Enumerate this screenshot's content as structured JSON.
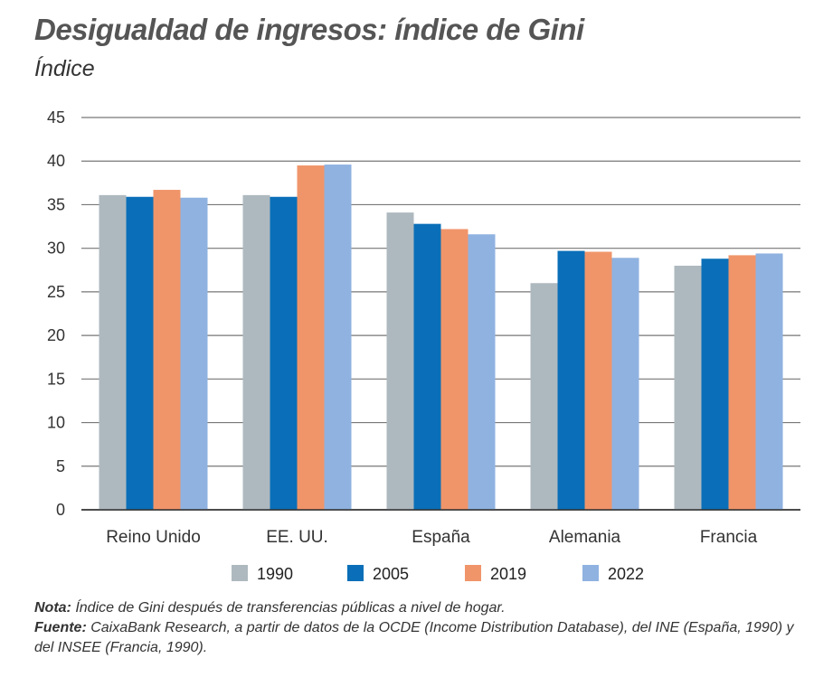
{
  "chart_data": {
    "type": "bar",
    "title": "Desigualdad de ingresos: índice de Gini",
    "subtitle": "Índice",
    "categories": [
      "Reino Unido",
      "EE. UU.",
      "España",
      "Alemania",
      "Francia"
    ],
    "series": [
      {
        "name": "1990",
        "color": "#aeb9bf",
        "values": [
          36.1,
          36.1,
          34.1,
          26.0,
          28.0
        ]
      },
      {
        "name": "2005",
        "color": "#0a6fb8",
        "values": [
          35.9,
          35.9,
          32.8,
          29.7,
          28.8
        ]
      },
      {
        "name": "2019",
        "color": "#f0956a",
        "values": [
          36.7,
          39.5,
          32.2,
          29.6,
          29.2
        ]
      },
      {
        "name": "2022",
        "color": "#8fb2e0",
        "values": [
          35.8,
          39.6,
          31.6,
          28.9,
          29.4
        ]
      }
    ],
    "ylim": [
      0,
      45
    ],
    "yticks": [
      0,
      5,
      10,
      15,
      20,
      25,
      30,
      35,
      40,
      45
    ],
    "grid": true,
    "legend": "bottom"
  },
  "notes": {
    "nota_label": "Nota:",
    "nota_text": " Índice de Gini después de transferencias públicas a nivel de hogar.",
    "fuente_label": "Fuente:",
    "fuente_text": " CaixaBank Research, a partir de datos de la OCDE (Income Distribution Database), del INE (España, 1990) y del INSEE (Francia, 1990)."
  }
}
